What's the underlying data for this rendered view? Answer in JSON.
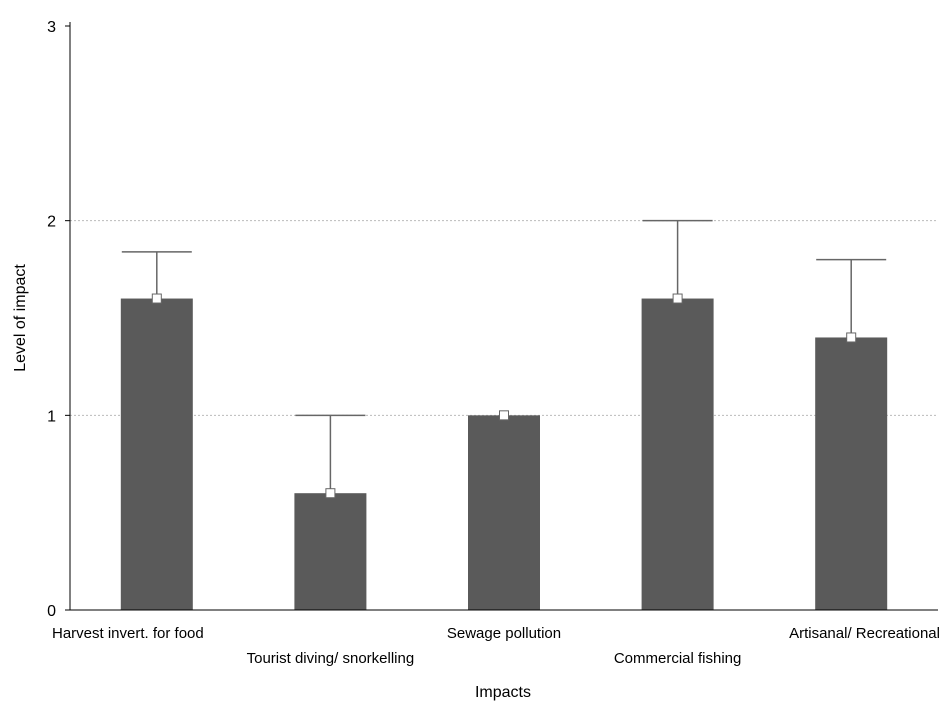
{
  "chart_data": {
    "type": "bar",
    "title": "",
    "xlabel": "Impacts",
    "ylabel": "Level of impact",
    "ylim": [
      0,
      3
    ],
    "yticks": [
      0,
      1,
      2,
      3
    ],
    "grid": true,
    "categories": [
      "Harvest invert. for food",
      "Tourist diving/ snorkelling",
      "Sewage pollution",
      "Commercial fishing",
      "Artisanal/ Recreational"
    ],
    "values": [
      1.6,
      0.6,
      1.0,
      1.6,
      1.4
    ],
    "error_upper": [
      1.84,
      1.0,
      1.0,
      2.0,
      1.8
    ],
    "colors": {
      "bar": "#5a5a5a",
      "error": "#666666",
      "grid": "#bbbbbb",
      "marker_fill": "#ffffff",
      "axis": "#000000"
    }
  }
}
